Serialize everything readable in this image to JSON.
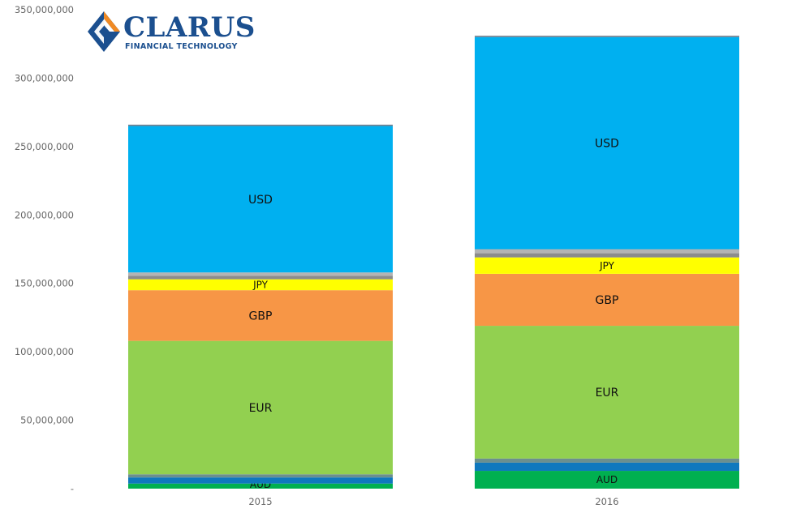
{
  "logo": {
    "name": "CLARUS",
    "tagline": "FINANCIAL TECHNOLOGY"
  },
  "chart_data": {
    "type": "bar",
    "stacked": true,
    "title": "",
    "xlabel": "",
    "ylabel": "",
    "ylim": [
      0,
      350000000
    ],
    "y_ticks": [
      "-",
      "50,000,000",
      "100,000,000",
      "150,000,000",
      "200,000,000",
      "250,000,000",
      "300,000,000",
      "350,000,000"
    ],
    "y_tick_values": [
      0,
      50000000,
      100000000,
      150000000,
      200000000,
      250000000,
      300000000,
      350000000
    ],
    "grid": false,
    "categories": [
      "2015",
      "2016"
    ],
    "series": [
      {
        "name": "AUD",
        "color": "#00b050",
        "values": [
          3700000,
          13000000
        ],
        "labeled": true
      },
      {
        "name": "",
        "color": "#0f78be",
        "values": [
          4500000,
          6000000
        ],
        "labeled": false
      },
      {
        "name": "",
        "color": "#6b8f8f",
        "values": [
          2300000,
          3000000
        ],
        "labeled": false
      },
      {
        "name": "EUR",
        "color": "#92d050",
        "values": [
          97500000,
          97000000
        ],
        "labeled": true
      },
      {
        "name": "GBP",
        "color": "#f79646",
        "values": [
          37000000,
          38000000
        ],
        "labeled": true
      },
      {
        "name": "JPY",
        "color": "#ffff00",
        "values": [
          8000000,
          12000000
        ],
        "labeled": true
      },
      {
        "name": "",
        "color": "#8c8c8c",
        "values": [
          2500000,
          3000000
        ],
        "labeled": false
      },
      {
        "name": "",
        "color": "#b4b4b4",
        "values": [
          2500000,
          3000000
        ],
        "labeled": false
      },
      {
        "name": "USD",
        "color": "#00b0f0",
        "values": [
          107000000,
          155000000
        ],
        "labeled": true
      },
      {
        "name": "",
        "color": "#708090",
        "values": [
          1000000,
          1000000
        ],
        "labeled": false
      }
    ]
  }
}
